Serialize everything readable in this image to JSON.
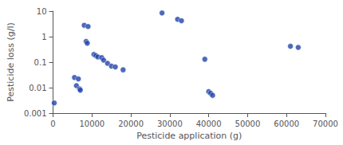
{
  "chart_data": {
    "type": "scatter",
    "xlabel": "Pesticide application (g)",
    "ylabel": "Pesticide loss (g/l)",
    "x": [
      300,
      5500,
      6500,
      8000,
      9000,
      8500,
      8800,
      10500,
      11000,
      11500,
      12500,
      13000,
      14000,
      15000,
      16000,
      18000,
      6000,
      6800,
      7000,
      28000,
      32000,
      33000,
      39000,
      40000,
      40500,
      41000,
      61000,
      63000
    ],
    "values": [
      0.0025,
      0.025,
      0.022,
      2.8,
      2.5,
      0.65,
      0.55,
      0.2,
      0.18,
      0.16,
      0.15,
      0.12,
      0.09,
      0.07,
      0.065,
      0.05,
      0.012,
      0.009,
      0.008,
      8.5,
      4.8,
      4.2,
      0.13,
      0.007,
      0.006,
      0.005,
      0.42,
      0.38
    ],
    "color": "#2244aa",
    "xlim": [
      0,
      70000
    ],
    "xticks": [
      0,
      10000,
      20000,
      30000,
      40000,
      50000,
      60000,
      70000
    ],
    "ylim": [
      0.001,
      10
    ],
    "yticks": [
      0.001,
      0.01,
      0.1,
      1,
      10
    ],
    "log": "y",
    "grid": false
  }
}
